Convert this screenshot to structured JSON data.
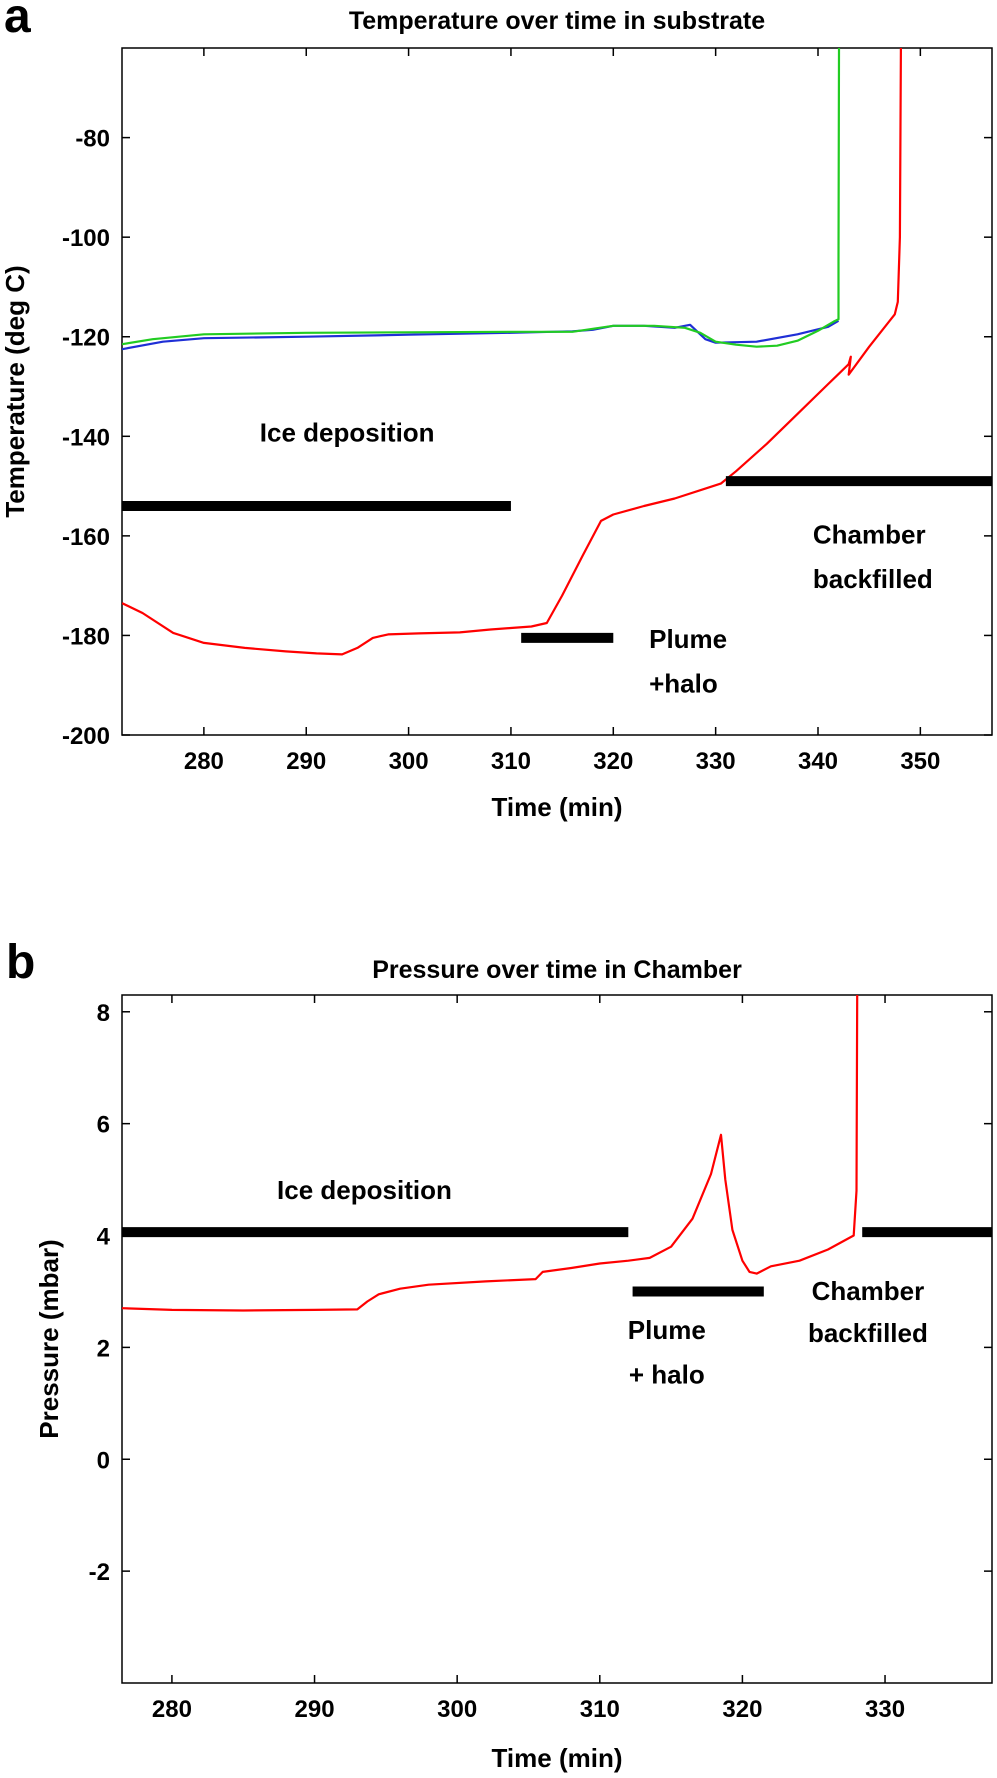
{
  "panel_letters": {
    "a": "a",
    "b": "b"
  },
  "colors": {
    "red": "#ff0000",
    "green": "#22cc22",
    "blue": "#1f2fd6",
    "bar": "#000000"
  },
  "chart_data": [
    {
      "type": "line",
      "title": "Temperature over time in substrate",
      "xlabel": "Time (min)",
      "ylabel": "Temperature (deg C)",
      "xlim": [
        272,
        357
      ],
      "ylim": [
        -200,
        -62
      ],
      "xticks": [
        280,
        290,
        300,
        310,
        320,
        330,
        340,
        350
      ],
      "yticks": [
        -200,
        -180,
        -160,
        -140,
        -120,
        -100,
        -80
      ],
      "series": [
        {
          "color": "#ff0000",
          "points": [
            [
              272,
              -173.5
            ],
            [
              274,
              -175.5
            ],
            [
              277,
              -179.5
            ],
            [
              280,
              -181.5
            ],
            [
              284,
              -182.5
            ],
            [
              288,
              -183.2
            ],
            [
              291,
              -183.6
            ],
            [
              293.5,
              -183.8
            ],
            [
              295,
              -182.5
            ],
            [
              296.5,
              -180.5
            ],
            [
              298,
              -179.8
            ],
            [
              301,
              -179.6
            ],
            [
              305,
              -179.4
            ],
            [
              308,
              -178.8
            ],
            [
              310,
              -178.5
            ],
            [
              312,
              -178.2
            ],
            [
              313.5,
              -177.5
            ],
            [
              315,
              -172
            ],
            [
              317,
              -164
            ],
            [
              318.8,
              -157
            ],
            [
              320,
              -155.7
            ],
            [
              323,
              -154
            ],
            [
              326,
              -152.5
            ],
            [
              329,
              -150.5
            ],
            [
              330.5,
              -149.5
            ],
            [
              332,
              -147
            ],
            [
              335,
              -141.5
            ],
            [
              338,
              -135.5
            ],
            [
              341,
              -129.5
            ],
            [
              342,
              -127.5
            ],
            [
              343,
              -125.5
            ],
            [
              343.2,
              -124
            ],
            [
              343,
              -127.6
            ],
            [
              345,
              -122
            ],
            [
              347.5,
              -115.5
            ],
            [
              347.8,
              -113
            ],
            [
              348,
              -100
            ],
            [
              348.1,
              -62
            ]
          ]
        },
        {
          "color": "#1f2fd6",
          "points": [
            [
              272,
              -122.5
            ],
            [
              276,
              -121
            ],
            [
              280,
              -120.3
            ],
            [
              290,
              -120
            ],
            [
              300,
              -119.6
            ],
            [
              310,
              -119.2
            ],
            [
              316,
              -118.9
            ],
            [
              318,
              -118.6
            ],
            [
              320,
              -117.8
            ],
            [
              323,
              -117.8
            ],
            [
              326,
              -118.2
            ],
            [
              327.5,
              -117.6
            ],
            [
              329,
              -120.5
            ],
            [
              330,
              -121.2
            ],
            [
              334,
              -121
            ],
            [
              338,
              -119.5
            ],
            [
              341,
              -118
            ],
            [
              342,
              -116.8
            ]
          ]
        },
        {
          "color": "#22cc22",
          "points": [
            [
              272,
              -121.5
            ],
            [
              275,
              -120.5
            ],
            [
              280,
              -119.5
            ],
            [
              290,
              -119.2
            ],
            [
              300,
              -119.1
            ],
            [
              310,
              -119
            ],
            [
              316,
              -119
            ],
            [
              318,
              -118.4
            ],
            [
              320,
              -117.8
            ],
            [
              324,
              -117.8
            ],
            [
              327,
              -118.2
            ],
            [
              328.5,
              -119.2
            ],
            [
              330,
              -121
            ],
            [
              332,
              -121.6
            ],
            [
              334,
              -122
            ],
            [
              336,
              -121.8
            ],
            [
              338,
              -120.8
            ],
            [
              340,
              -118.8
            ],
            [
              341.5,
              -117
            ],
            [
              342,
              -116.5
            ],
            [
              342,
              -105
            ],
            [
              342.05,
              -62
            ]
          ]
        }
      ],
      "bars": [
        [
          272,
          310
        ],
        [
          311,
          320
        ],
        [
          331,
          357
        ]
      ],
      "bar_y": [
        -154,
        -180.5,
        -149
      ],
      "annotations": [
        {
          "text": "Ice deposition",
          "x": 294,
          "y": -141,
          "anchor": "middle"
        },
        {
          "text": "Plume",
          "x": 323.5,
          "y": -182.5,
          "anchor": "start"
        },
        {
          "text": "+halo",
          "x": 323.5,
          "y": -191.5,
          "anchor": "start"
        },
        {
          "text": "Chamber",
          "x": 339.5,
          "y": -161.5,
          "anchor": "start"
        },
        {
          "text": "backfilled",
          "x": 339.5,
          "y": -170.5,
          "anchor": "start"
        }
      ]
    },
    {
      "type": "line",
      "title": "Pressure over time in Chamber",
      "xlabel": "Time (min)",
      "ylabel": "Pressure (mbar)",
      "xlim": [
        276.5,
        337.5
      ],
      "ylim": [
        -4,
        8.3
      ],
      "xticks": [
        280,
        290,
        300,
        310,
        320,
        330
      ],
      "yticks": [
        -2,
        0,
        2,
        4,
        6,
        8
      ],
      "series": [
        {
          "color": "#ff0000",
          "points": [
            [
              276.5,
              2.7
            ],
            [
              280,
              2.67
            ],
            [
              285,
              2.66
            ],
            [
              290,
              2.67
            ],
            [
              293,
              2.68
            ],
            [
              293.7,
              2.82
            ],
            [
              294.5,
              2.95
            ],
            [
              296,
              3.05
            ],
            [
              298,
              3.12
            ],
            [
              302,
              3.18
            ],
            [
              305.5,
              3.22
            ],
            [
              306,
              3.35
            ],
            [
              308,
              3.42
            ],
            [
              310,
              3.5
            ],
            [
              312,
              3.55
            ],
            [
              313.5,
              3.6
            ],
            [
              315,
              3.8
            ],
            [
              316.5,
              4.3
            ],
            [
              317.8,
              5.1
            ],
            [
              318.5,
              5.8
            ],
            [
              318.8,
              5.0
            ],
            [
              319.3,
              4.1
            ],
            [
              320,
              3.55
            ],
            [
              320.5,
              3.35
            ],
            [
              321,
              3.32
            ],
            [
              322,
              3.45
            ],
            [
              324,
              3.55
            ],
            [
              326,
              3.75
            ],
            [
              327.8,
              4.0
            ],
            [
              328,
              4.8
            ],
            [
              328.05,
              8.3
            ]
          ]
        }
      ],
      "bars": [
        [
          276.5,
          312
        ],
        [
          312.3,
          321.5
        ],
        [
          328.4,
          337.5
        ]
      ],
      "bar_y": [
        4.06,
        3.0,
        4.06
      ],
      "annotations": [
        {
          "text": "Ice deposition",
          "x": 293.5,
          "y": 4.65,
          "anchor": "middle"
        },
        {
          "text": "Plume",
          "x": 314.7,
          "y": 2.15,
          "anchor": "middle"
        },
        {
          "text": "+ halo",
          "x": 314.7,
          "y": 1.35,
          "anchor": "middle"
        },
        {
          "text": "Chamber",
          "x": 328.8,
          "y": 2.85,
          "anchor": "middle"
        },
        {
          "text": "backfilled",
          "x": 328.8,
          "y": 2.1,
          "anchor": "middle"
        }
      ]
    }
  ]
}
